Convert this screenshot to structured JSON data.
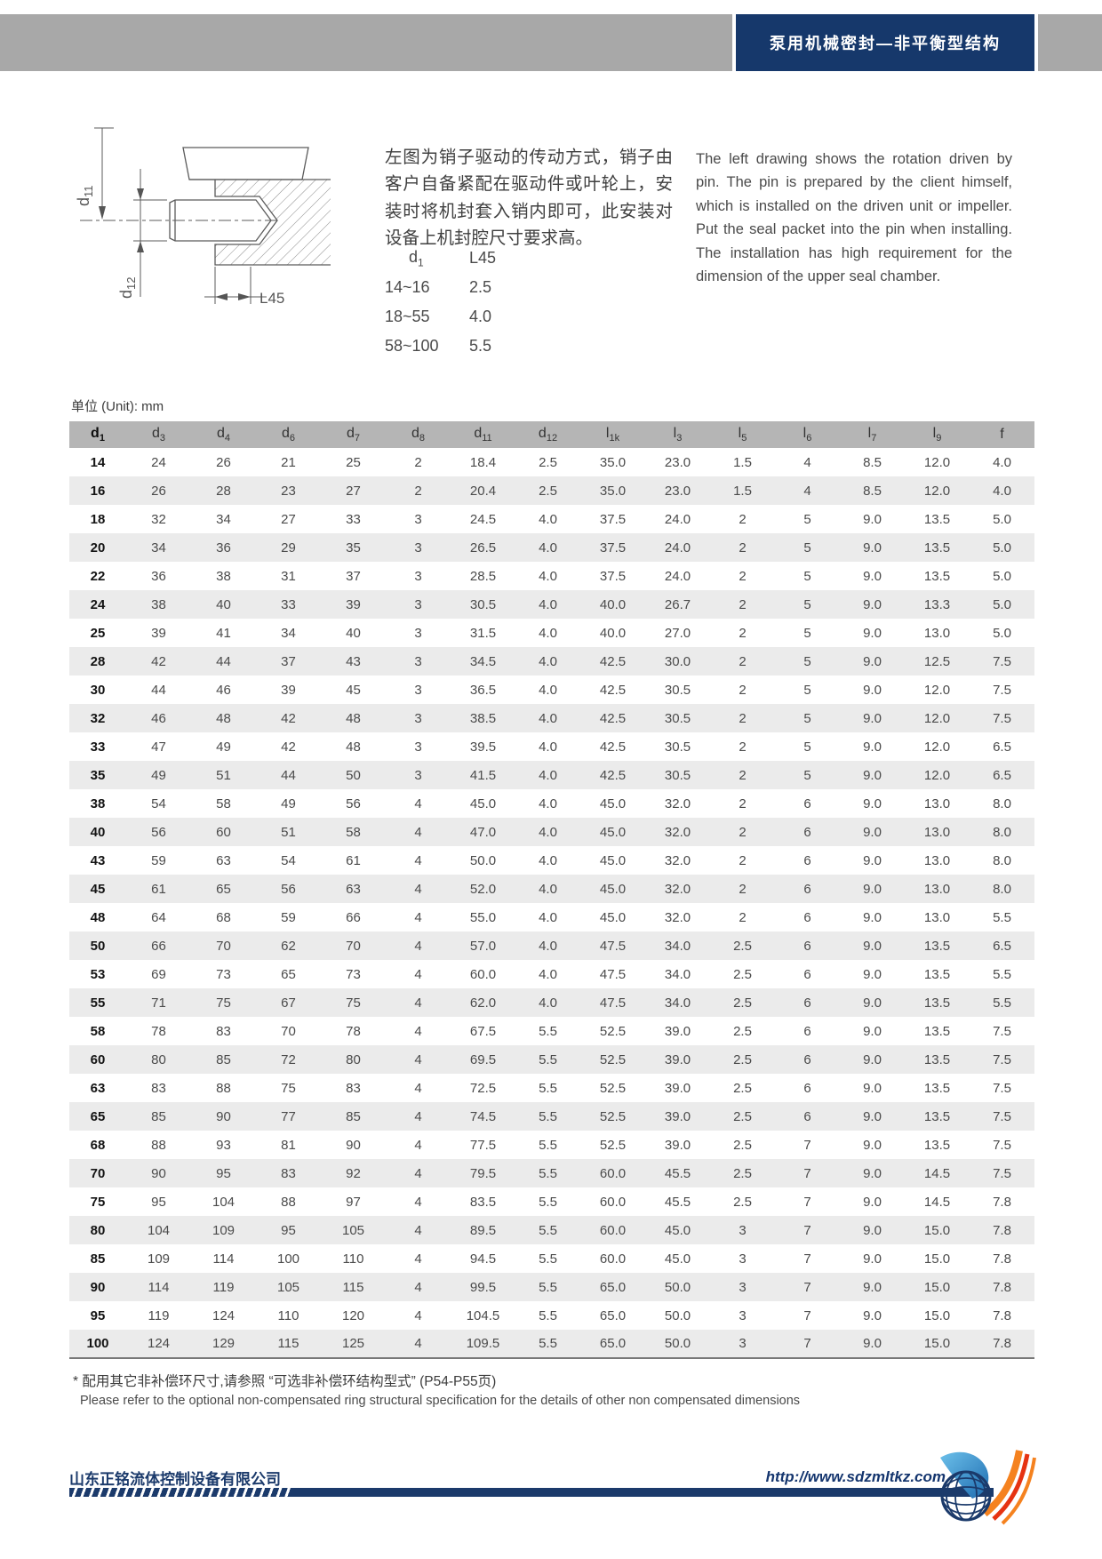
{
  "header": {
    "title": "泵用机械密封—非平衡型结构"
  },
  "intro": {
    "paragraph_cn": "左图为销子驱动的传动方式，销子由客户自备紧配在驱动件或叶轮上，安装时将机封套入销内即可，此安装对设备上机封腔尺寸要求高。",
    "paragraph_en": "The left drawing shows the rotation driven by pin. The pin is prepared by the client himself, which is installed on the driven unit or impeller. Put the seal packet into the pin when installing. The installation has high requirement for the dimension of the upper seal chamber."
  },
  "drawing": {
    "d11_base": "d",
    "d11_sub": "11",
    "d12_base": "d",
    "d12_sub": "12",
    "l45_label": "L45"
  },
  "pin_table": {
    "col1_base": "d",
    "col1_sub": "1",
    "col2_header": "L45",
    "rows": [
      [
        "14~16",
        "2.5"
      ],
      [
        "18~55",
        "4.0"
      ],
      [
        "58~100",
        "5.5"
      ]
    ]
  },
  "unit_label": "单位 (Unit): mm",
  "main_table": {
    "headers": [
      {
        "b": "d",
        "s": "1"
      },
      {
        "b": "d",
        "s": "3"
      },
      {
        "b": "d",
        "s": "4"
      },
      {
        "b": "d",
        "s": "6"
      },
      {
        "b": "d",
        "s": "7"
      },
      {
        "b": "d",
        "s": "8"
      },
      {
        "b": "d",
        "s": "11"
      },
      {
        "b": "d",
        "s": "12"
      },
      {
        "b": "l",
        "s": "1k"
      },
      {
        "b": "l",
        "s": "3"
      },
      {
        "b": "l",
        "s": "5"
      },
      {
        "b": "l",
        "s": "6"
      },
      {
        "b": "l",
        "s": "7"
      },
      {
        "b": "l",
        "s": "9"
      },
      {
        "b": "f",
        "s": ""
      }
    ],
    "rows": [
      [
        "14",
        "24",
        "26",
        "21",
        "25",
        "2",
        "18.4",
        "2.5",
        "35.0",
        "23.0",
        "1.5",
        "4",
        "8.5",
        "12.0",
        "4.0"
      ],
      [
        "16",
        "26",
        "28",
        "23",
        "27",
        "2",
        "20.4",
        "2.5",
        "35.0",
        "23.0",
        "1.5",
        "4",
        "8.5",
        "12.0",
        "4.0"
      ],
      [
        "18",
        "32",
        "34",
        "27",
        "33",
        "3",
        "24.5",
        "4.0",
        "37.5",
        "24.0",
        "2",
        "5",
        "9.0",
        "13.5",
        "5.0"
      ],
      [
        "20",
        "34",
        "36",
        "29",
        "35",
        "3",
        "26.5",
        "4.0",
        "37.5",
        "24.0",
        "2",
        "5",
        "9.0",
        "13.5",
        "5.0"
      ],
      [
        "22",
        "36",
        "38",
        "31",
        "37",
        "3",
        "28.5",
        "4.0",
        "37.5",
        "24.0",
        "2",
        "5",
        "9.0",
        "13.5",
        "5.0"
      ],
      [
        "24",
        "38",
        "40",
        "33",
        "39",
        "3",
        "30.5",
        "4.0",
        "40.0",
        "26.7",
        "2",
        "5",
        "9.0",
        "13.3",
        "5.0"
      ],
      [
        "25",
        "39",
        "41",
        "34",
        "40",
        "3",
        "31.5",
        "4.0",
        "40.0",
        "27.0",
        "2",
        "5",
        "9.0",
        "13.0",
        "5.0"
      ],
      [
        "28",
        "42",
        "44",
        "37",
        "43",
        "3",
        "34.5",
        "4.0",
        "42.5",
        "30.0",
        "2",
        "5",
        "9.0",
        "12.5",
        "7.5"
      ],
      [
        "30",
        "44",
        "46",
        "39",
        "45",
        "3",
        "36.5",
        "4.0",
        "42.5",
        "30.5",
        "2",
        "5",
        "9.0",
        "12.0",
        "7.5"
      ],
      [
        "32",
        "46",
        "48",
        "42",
        "48",
        "3",
        "38.5",
        "4.0",
        "42.5",
        "30.5",
        "2",
        "5",
        "9.0",
        "12.0",
        "7.5"
      ],
      [
        "33",
        "47",
        "49",
        "42",
        "48",
        "3",
        "39.5",
        "4.0",
        "42.5",
        "30.5",
        "2",
        "5",
        "9.0",
        "12.0",
        "6.5"
      ],
      [
        "35",
        "49",
        "51",
        "44",
        "50",
        "3",
        "41.5",
        "4.0",
        "42.5",
        "30.5",
        "2",
        "5",
        "9.0",
        "12.0",
        "6.5"
      ],
      [
        "38",
        "54",
        "58",
        "49",
        "56",
        "4",
        "45.0",
        "4.0",
        "45.0",
        "32.0",
        "2",
        "6",
        "9.0",
        "13.0",
        "8.0"
      ],
      [
        "40",
        "56",
        "60",
        "51",
        "58",
        "4",
        "47.0",
        "4.0",
        "45.0",
        "32.0",
        "2",
        "6",
        "9.0",
        "13.0",
        "8.0"
      ],
      [
        "43",
        "59",
        "63",
        "54",
        "61",
        "4",
        "50.0",
        "4.0",
        "45.0",
        "32.0",
        "2",
        "6",
        "9.0",
        "13.0",
        "8.0"
      ],
      [
        "45",
        "61",
        "65",
        "56",
        "63",
        "4",
        "52.0",
        "4.0",
        "45.0",
        "32.0",
        "2",
        "6",
        "9.0",
        "13.0",
        "8.0"
      ],
      [
        "48",
        "64",
        "68",
        "59",
        "66",
        "4",
        "55.0",
        "4.0",
        "45.0",
        "32.0",
        "2",
        "6",
        "9.0",
        "13.0",
        "5.5"
      ],
      [
        "50",
        "66",
        "70",
        "62",
        "70",
        "4",
        "57.0",
        "4.0",
        "47.5",
        "34.0",
        "2.5",
        "6",
        "9.0",
        "13.5",
        "6.5"
      ],
      [
        "53",
        "69",
        "73",
        "65",
        "73",
        "4",
        "60.0",
        "4.0",
        "47.5",
        "34.0",
        "2.5",
        "6",
        "9.0",
        "13.5",
        "5.5"
      ],
      [
        "55",
        "71",
        "75",
        "67",
        "75",
        "4",
        "62.0",
        "4.0",
        "47.5",
        "34.0",
        "2.5",
        "6",
        "9.0",
        "13.5",
        "5.5"
      ],
      [
        "58",
        "78",
        "83",
        "70",
        "78",
        "4",
        "67.5",
        "5.5",
        "52.5",
        "39.0",
        "2.5",
        "6",
        "9.0",
        "13.5",
        "7.5"
      ],
      [
        "60",
        "80",
        "85",
        "72",
        "80",
        "4",
        "69.5",
        "5.5",
        "52.5",
        "39.0",
        "2.5",
        "6",
        "9.0",
        "13.5",
        "7.5"
      ],
      [
        "63",
        "83",
        "88",
        "75",
        "83",
        "4",
        "72.5",
        "5.5",
        "52.5",
        "39.0",
        "2.5",
        "6",
        "9.0",
        "13.5",
        "7.5"
      ],
      [
        "65",
        "85",
        "90",
        "77",
        "85",
        "4",
        "74.5",
        "5.5",
        "52.5",
        "39.0",
        "2.5",
        "6",
        "9.0",
        "13.5",
        "7.5"
      ],
      [
        "68",
        "88",
        "93",
        "81",
        "90",
        "4",
        "77.5",
        "5.5",
        "52.5",
        "39.0",
        "2.5",
        "7",
        "9.0",
        "13.5",
        "7.5"
      ],
      [
        "70",
        "90",
        "95",
        "83",
        "92",
        "4",
        "79.5",
        "5.5",
        "60.0",
        "45.5",
        "2.5",
        "7",
        "9.0",
        "14.5",
        "7.5"
      ],
      [
        "75",
        "95",
        "104",
        "88",
        "97",
        "4",
        "83.5",
        "5.5",
        "60.0",
        "45.5",
        "2.5",
        "7",
        "9.0",
        "14.5",
        "7.8"
      ],
      [
        "80",
        "104",
        "109",
        "95",
        "105",
        "4",
        "89.5",
        "5.5",
        "60.0",
        "45.0",
        "3",
        "7",
        "9.0",
        "15.0",
        "7.8"
      ],
      [
        "85",
        "109",
        "114",
        "100",
        "110",
        "4",
        "94.5",
        "5.5",
        "60.0",
        "45.0",
        "3",
        "7",
        "9.0",
        "15.0",
        "7.8"
      ],
      [
        "90",
        "114",
        "119",
        "105",
        "115",
        "4",
        "99.5",
        "5.5",
        "65.0",
        "50.0",
        "3",
        "7",
        "9.0",
        "15.0",
        "7.8"
      ],
      [
        "95",
        "119",
        "124",
        "110",
        "120",
        "4",
        "104.5",
        "5.5",
        "65.0",
        "50.0",
        "3",
        "7",
        "9.0",
        "15.0",
        "7.8"
      ],
      [
        "100",
        "124",
        "129",
        "115",
        "125",
        "4",
        "109.5",
        "5.5",
        "65.0",
        "50.0",
        "3",
        "7",
        "9.0",
        "15.0",
        "7.8"
      ]
    ]
  },
  "footnote": {
    "line_cn": "* 配用其它非补偿环尺寸,请参照 “可选非补偿环结构型式” (P54-P55页)",
    "line_en": "Please refer to the optional non-compensated ring structural specification for the details of other non compensated dimensions"
  },
  "footer": {
    "company": "山东正铭流体控制设备有限公司",
    "url": "http://www.sdzmltkz.com"
  },
  "colors": {
    "navy": "#16386b",
    "banner_gray": "#a8a8a8",
    "table_header_gray": "#b5b5b5",
    "row_stripe": "#ebebeb",
    "logo_orange": "#f5821f",
    "logo_red": "#e63312"
  }
}
